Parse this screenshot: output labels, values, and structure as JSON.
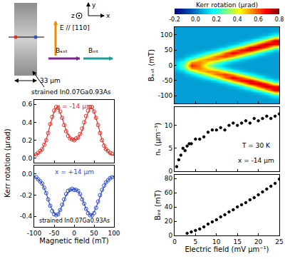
{
  "diagram": {
    "axes": [
      "x",
      "y",
      "z"
    ],
    "field": "E // [110]",
    "b_ext": "Bₑₓₜ",
    "b_int": "Bᵢₙₜ",
    "width": "33 μm",
    "sample": "strained In0.07Ga0.93As"
  },
  "chart_data": [
    {
      "type": "scatter",
      "ylabel": "Kerr rotation (μrad)",
      "color": "#e0302a",
      "xlim": [
        -100,
        100
      ],
      "xticks": [
        -100,
        -50,
        0,
        50,
        100
      ],
      "ylim": [
        -0.05,
        0.65
      ],
      "yticks": [
        {
          "value": 0,
          "label": "0.0"
        },
        0.2,
        0.4,
        0.6
      ],
      "tick_labels": "y",
      "annotations": [
        "x = -14 μm"
      ],
      "series": [
        {
          "type": "scatter",
          "marker": "circle-open",
          "x": [
            -95,
            -90,
            -85,
            -80,
            -75,
            -70,
            -65,
            -60,
            -55,
            -50,
            -45,
            -40,
            -35,
            -30,
            -25,
            -20,
            -15,
            -10,
            -5,
            0,
            5,
            10,
            15,
            20,
            25,
            30,
            35,
            40,
            45,
            50,
            55,
            60,
            65,
            70,
            75,
            80,
            85,
            90,
            95
          ],
          "values": [
            0.04,
            0.06,
            0.08,
            0.1,
            0.15,
            0.2,
            0.28,
            0.38,
            0.46,
            0.53,
            0.57,
            0.56,
            0.52,
            0.45,
            0.37,
            0.3,
            0.25,
            0.22,
            0.21,
            0.2,
            0.22,
            0.23,
            0.27,
            0.33,
            0.4,
            0.47,
            0.53,
            0.57,
            0.57,
            0.52,
            0.45,
            0.37,
            0.28,
            0.2,
            0.14,
            0.1,
            0.08,
            0.06,
            0.05
          ]
        },
        {
          "type": "line",
          "line_style": "solid",
          "x": [
            -100,
            -90,
            -80,
            -70,
            -60,
            -50,
            -45,
            -40,
            -30,
            -20,
            -10,
            0,
            10,
            20,
            30,
            40,
            45,
            50,
            60,
            70,
            80,
            90,
            100
          ],
          "values": [
            0.03,
            0.05,
            0.1,
            0.2,
            0.37,
            0.52,
            0.56,
            0.56,
            0.45,
            0.31,
            0.22,
            0.2,
            0.22,
            0.31,
            0.45,
            0.56,
            0.56,
            0.52,
            0.37,
            0.2,
            0.1,
            0.05,
            0.03
          ]
        }
      ]
    },
    {
      "type": "scatter",
      "xlabel": "Magnetic field (mT)",
      "color": "#2f4fc4",
      "xlim": [
        -100,
        100
      ],
      "xticks": [
        -100,
        -50,
        0,
        50,
        100
      ],
      "ylim": [
        -0.5,
        0.08
      ],
      "yticks": [
        -0.4,
        -0.2,
        {
          "value": 0,
          "label": "0.0"
        }
      ],
      "annotations": [
        "x = +14 μm",
        "strained In0.07Ga0.93As"
      ],
      "series": [
        {
          "type": "scatter",
          "marker": "circle-open",
          "x": [
            -95,
            -90,
            -85,
            -80,
            -75,
            -70,
            -65,
            -60,
            -55,
            -50,
            -45,
            -40,
            -35,
            -30,
            -25,
            -20,
            -15,
            -10,
            -5,
            0,
            5,
            10,
            15,
            20,
            25,
            30,
            35,
            40,
            45,
            50,
            55,
            60,
            65,
            70,
            75,
            80,
            85,
            90,
            95
          ],
          "values": [
            -0.03,
            -0.05,
            -0.07,
            -0.09,
            -0.13,
            -0.18,
            -0.24,
            -0.3,
            -0.35,
            -0.38,
            -0.39,
            -0.38,
            -0.34,
            -0.29,
            -0.24,
            -0.19,
            -0.16,
            -0.15,
            -0.14,
            -0.15,
            -0.15,
            -0.16,
            -0.19,
            -0.24,
            -0.28,
            -0.33,
            -0.37,
            -0.39,
            -0.39,
            -0.37,
            -0.32,
            -0.26,
            -0.2,
            -0.15,
            -0.11,
            -0.08,
            -0.06,
            -0.04,
            -0.03
          ]
        },
        {
          "type": "line",
          "line_style": "solid",
          "x": [
            -100,
            -90,
            -80,
            -70,
            -60,
            -50,
            -45,
            -40,
            -30,
            -20,
            -10,
            0,
            10,
            20,
            30,
            40,
            45,
            50,
            60,
            70,
            80,
            90,
            100
          ],
          "values": [
            -0.02,
            -0.05,
            -0.09,
            -0.18,
            -0.3,
            -0.37,
            -0.39,
            -0.38,
            -0.3,
            -0.2,
            -0.15,
            -0.14,
            -0.16,
            -0.23,
            -0.33,
            -0.39,
            -0.39,
            -0.36,
            -0.27,
            -0.16,
            -0.08,
            -0.04,
            -0.02
          ]
        }
      ]
    },
    {
      "type": "heatmap",
      "ylabel": "Bₑₓₜ (mT)",
      "xlim": [
        0,
        25
      ],
      "xticks": [
        0,
        5,
        10,
        15,
        20,
        25
      ],
      "ylim": [
        -125,
        125
      ],
      "yticks": [
        -100,
        -50,
        0,
        50,
        100
      ],
      "tick_labels": "y",
      "x": [
        0,
        2,
        4,
        6,
        8,
        10,
        12,
        14,
        16,
        18,
        20,
        22,
        24
      ],
      "y": [
        -120,
        -110,
        -100,
        -90,
        -80,
        -70,
        -60,
        -50,
        -40,
        -30,
        -20,
        -10,
        0,
        10,
        20,
        30,
        40,
        50,
        60,
        70,
        80,
        90,
        100,
        110,
        120
      ],
      "z": [
        [
          0.05,
          0.05,
          0.05,
          0.05,
          0.05,
          0.05,
          0.05,
          0.05,
          0.05,
          0.05,
          0.05,
          0.05,
          0.05
        ],
        [
          0.05,
          0.05,
          0.05,
          0.05,
          0.05,
          0.05,
          0.05,
          0.05,
          0.05,
          0.05,
          0.05,
          0.05,
          0.07
        ],
        [
          0.05,
          0.05,
          0.05,
          0.05,
          0.05,
          0.05,
          0.05,
          0.05,
          0.05,
          0.05,
          0.06,
          0.08,
          0.17
        ],
        [
          0.05,
          0.05,
          0.05,
          0.05,
          0.05,
          0.05,
          0.05,
          0.05,
          0.05,
          0.06,
          0.1,
          0.2,
          0.44
        ],
        [
          0.05,
          0.05,
          0.05,
          0.05,
          0.05,
          0.05,
          0.05,
          0.05,
          0.07,
          0.13,
          0.28,
          0.5,
          0.72
        ],
        [
          0.05,
          0.05,
          0.05,
          0.05,
          0.05,
          0.05,
          0.06,
          0.09,
          0.18,
          0.37,
          0.6,
          0.74,
          0.67
        ],
        [
          0.05,
          0.05,
          0.05,
          0.05,
          0.05,
          0.07,
          0.11,
          0.24,
          0.43,
          0.67,
          0.75,
          0.62,
          0.37
        ],
        [
          0.05,
          0.05,
          0.05,
          0.06,
          0.08,
          0.14,
          0.3,
          0.52,
          0.68,
          0.72,
          0.53,
          0.31,
          0.13
        ],
        [
          0.05,
          0.05,
          0.06,
          0.1,
          0.2,
          0.35,
          0.57,
          0.7,
          0.61,
          0.44,
          0.23,
          0.11,
          0.06
        ],
        [
          0.05,
          0.06,
          0.13,
          0.25,
          0.42,
          0.57,
          0.63,
          0.52,
          0.32,
          0.17,
          0.09,
          0.06,
          0.05
        ],
        [
          0.06,
          0.11,
          0.29,
          0.46,
          0.55,
          0.54,
          0.4,
          0.24,
          0.12,
          0.07,
          0.05,
          0.05,
          0.05
        ],
        [
          0.09,
          0.2,
          0.53,
          0.55,
          0.45,
          0.31,
          0.17,
          0.09,
          0.06,
          0.05,
          0.05,
          0.05,
          0.05
        ],
        [
          0.1,
          0.25,
          0.65,
          0.55,
          0.34,
          0.18,
          0.09,
          0.06,
          0.05,
          0.05,
          0.05,
          0.05,
          0.05
        ],
        [
          0.09,
          0.2,
          0.53,
          0.55,
          0.45,
          0.31,
          0.17,
          0.09,
          0.06,
          0.05,
          0.05,
          0.05,
          0.05
        ],
        [
          0.06,
          0.11,
          0.29,
          0.46,
          0.55,
          0.54,
          0.4,
          0.24,
          0.12,
          0.07,
          0.05,
          0.05,
          0.05
        ],
        [
          0.05,
          0.06,
          0.13,
          0.25,
          0.42,
          0.57,
          0.63,
          0.52,
          0.32,
          0.17,
          0.09,
          0.06,
          0.05
        ],
        [
          0.05,
          0.05,
          0.06,
          0.1,
          0.2,
          0.35,
          0.57,
          0.7,
          0.61,
          0.44,
          0.23,
          0.11,
          0.06
        ],
        [
          0.05,
          0.05,
          0.05,
          0.06,
          0.08,
          0.14,
          0.3,
          0.52,
          0.68,
          0.72,
          0.53,
          0.31,
          0.13
        ],
        [
          0.05,
          0.05,
          0.05,
          0.05,
          0.05,
          0.07,
          0.11,
          0.24,
          0.43,
          0.67,
          0.75,
          0.62,
          0.37
        ],
        [
          0.05,
          0.05,
          0.05,
          0.05,
          0.05,
          0.05,
          0.06,
          0.09,
          0.18,
          0.37,
          0.6,
          0.74,
          0.67
        ],
        [
          0.05,
          0.05,
          0.05,
          0.05,
          0.05,
          0.05,
          0.05,
          0.05,
          0.07,
          0.13,
          0.28,
          0.5,
          0.72
        ],
        [
          0.05,
          0.05,
          0.05,
          0.05,
          0.05,
          0.05,
          0.05,
          0.05,
          0.05,
          0.06,
          0.1,
          0.2,
          0.44
        ],
        [
          0.05,
          0.05,
          0.05,
          0.05,
          0.05,
          0.05,
          0.05,
          0.05,
          0.05,
          0.05,
          0.06,
          0.08,
          0.17
        ],
        [
          0.05,
          0.05,
          0.05,
          0.05,
          0.05,
          0.05,
          0.05,
          0.05,
          0.05,
          0.05,
          0.05,
          0.05,
          0.07
        ],
        [
          0.05,
          0.05,
          0.05,
          0.05,
          0.05,
          0.05,
          0.05,
          0.05,
          0.05,
          0.05,
          0.05,
          0.05,
          0.05
        ]
      ],
      "colorbar": {
        "title": "Kerr rotation (μrad)",
        "range": [
          -0.2,
          0.8
        ],
        "ticks": [
          -0.2,
          {
            "value": 0,
            "label": "0.0"
          },
          0.2,
          0.4,
          0.6,
          0.8
        ]
      }
    },
    {
      "type": "scatter",
      "ylabel": "nₛ (μm⁻³)",
      "color": "#000000",
      "xlim": [
        0,
        25
      ],
      "xticks": [
        0,
        5,
        10,
        15,
        20,
        25
      ],
      "ylim": [
        0,
        14
      ],
      "yticks": [
        0,
        5,
        10
      ],
      "tick_labels": "y",
      "annotations": [
        "T = 30 K",
        "x = -14 μm"
      ],
      "series": [
        {
          "type": "scatter",
          "marker": "circle",
          "x": [
            0.5,
            1,
            1.5,
            2,
            2.5,
            3,
            3.5,
            4,
            5,
            6,
            7,
            8,
            9,
            10,
            11,
            12,
            13,
            14,
            15,
            16,
            17,
            18,
            19,
            20,
            21,
            22,
            23,
            24,
            25
          ],
          "values": [
            1.0,
            2.5,
            3.5,
            5.0,
            4.5,
            5.5,
            6.0,
            6.0,
            7.0,
            7.0,
            7.5,
            8.5,
            9.0,
            9.0,
            9.5,
            9.0,
            10.0,
            10.5,
            10.0,
            10.5,
            11.0,
            10.5,
            11.5,
            11.0,
            11.5,
            12.0,
            11.5,
            12.0,
            12.5
          ]
        }
      ]
    },
    {
      "type": "scatter",
      "ylabel": "Bᵢₙₜ (mT)",
      "xlabel": "Electric field (mV μm⁻¹)",
      "color": "#000000",
      "xlim": [
        0,
        25
      ],
      "xticks": [
        0,
        5,
        10,
        15,
        20,
        25
      ],
      "ylim": [
        0,
        85
      ],
      "yticks": [
        0,
        20,
        40,
        60,
        80
      ],
      "series": [
        {
          "type": "scatter",
          "marker": "circle",
          "x": [
            3,
            4,
            5,
            6,
            7,
            8,
            9,
            10,
            11,
            12,
            13,
            14,
            15,
            16,
            17,
            18,
            19,
            20,
            21,
            22,
            23,
            24,
            25
          ],
          "values": [
            3,
            5,
            7,
            9,
            12,
            16,
            19,
            22,
            26,
            29,
            33,
            36,
            40,
            43,
            46,
            50,
            53,
            57,
            61,
            65,
            69,
            73,
            79
          ]
        }
      ]
    }
  ]
}
